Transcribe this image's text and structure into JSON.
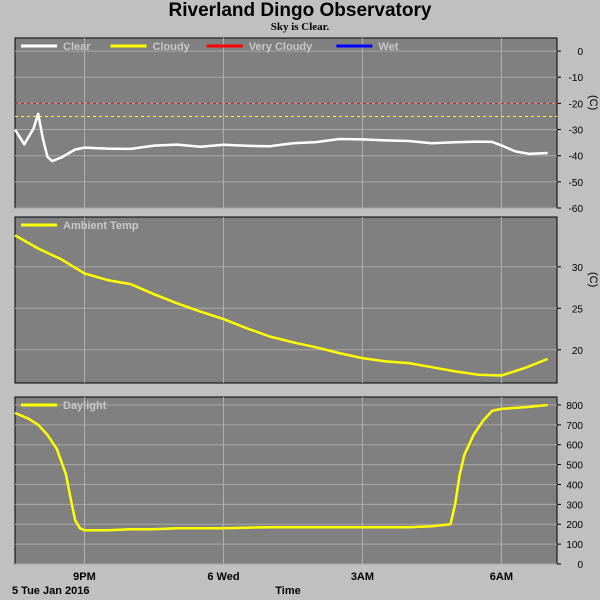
{
  "header": {
    "title": "Riverland Dingo Observatory",
    "subtitle": "Sky is Clear."
  },
  "footer": {
    "date_label": "5 Tue Jan 2016",
    "time_label": "Time"
  },
  "chart_data": [
    {
      "type": "line",
      "name": "sky-temperature",
      "legend": [
        {
          "label": "Clear",
          "color": "#ffffff"
        },
        {
          "label": "Cloudy",
          "color": "#ffff00"
        },
        {
          "label": "Very Cloudy",
          "color": "#ff0000"
        },
        {
          "label": "Wet",
          "color": "#0000ff"
        }
      ],
      "legend_placement": "top-left",
      "ylabel": "(C)",
      "ylim": [
        -60,
        5
      ],
      "yticks": [
        0,
        -10,
        -20,
        -30,
        -40,
        -50,
        -60
      ],
      "thresholds": [
        {
          "value": -20,
          "color": "#ff0000"
        },
        {
          "value": -25,
          "color": "#ffff00"
        }
      ],
      "x_hours": [
        19.5,
        19.7,
        19.9,
        20.0,
        20.1,
        20.2,
        20.3,
        20.5,
        20.8,
        21.0,
        21.5,
        22.0,
        22.5,
        23.0,
        23.5,
        24.0,
        24.5,
        25.0,
        25.5,
        26.0,
        26.5,
        27.0,
        27.5,
        28.0,
        28.5,
        29.0,
        29.5,
        29.8,
        30.0,
        30.3,
        30.6,
        31.0
      ],
      "series": [
        {
          "color": "#ffffff",
          "values": [
            -30,
            -36,
            -30,
            -24,
            -33,
            -40,
            -42,
            -41,
            -38,
            -37,
            -37,
            -37,
            -36,
            -36,
            -37,
            -36,
            -36,
            -36,
            -35,
            -35,
            -34,
            -34,
            -34,
            -34,
            -35,
            -35,
            -35,
            -35,
            -36,
            -38,
            -39,
            -39
          ]
        }
      ]
    },
    {
      "type": "line",
      "name": "ambient-temp",
      "legend": [
        {
          "label": "Ambient Temp",
          "color": "#ffff00"
        }
      ],
      "legend_placement": "top-left",
      "ylabel": "(C)",
      "ylim": [
        16,
        36
      ],
      "yticks": [
        30,
        25,
        20
      ],
      "x_hours": [
        19.5,
        20.0,
        20.5,
        21.0,
        21.5,
        22.0,
        22.5,
        23.0,
        23.5,
        24.0,
        24.5,
        25.0,
        25.5,
        26.0,
        26.5,
        27.0,
        27.5,
        28.0,
        28.5,
        29.0,
        29.5,
        30.0,
        30.5,
        31.0
      ],
      "series": [
        {
          "color": "#ffff00",
          "values": [
            33.8,
            32.2,
            30.9,
            29.2,
            28.4,
            27.9,
            26.7,
            25.6,
            24.6,
            23.7,
            22.6,
            21.6,
            20.9,
            20.3,
            19.6,
            19.0,
            18.6,
            18.4,
            17.9,
            17.4,
            17.0,
            16.9,
            17.8,
            18.9
          ]
        }
      ]
    },
    {
      "type": "line",
      "name": "daylight",
      "legend": [
        {
          "label": "Daylight",
          "color": "#ffff00"
        }
      ],
      "legend_placement": "top-left",
      "ylim": [
        0,
        840
      ],
      "yticks": [
        800,
        700,
        600,
        500,
        400,
        300,
        200,
        100,
        0
      ],
      "x_hours": [
        19.5,
        19.8,
        20.0,
        20.2,
        20.4,
        20.6,
        20.7,
        20.8,
        20.9,
        21.0,
        21.5,
        22.0,
        22.5,
        23.0,
        24.0,
        25.0,
        26.0,
        27.0,
        28.0,
        28.5,
        28.9,
        29.0,
        29.1,
        29.2,
        29.3,
        29.4,
        29.6,
        29.8,
        30.0,
        30.3,
        30.6,
        31.0
      ],
      "series": [
        {
          "color": "#ffff00",
          "values": [
            760,
            730,
            700,
            650,
            580,
            450,
            330,
            220,
            180,
            170,
            170,
            175,
            175,
            180,
            180,
            185,
            185,
            185,
            185,
            190,
            200,
            300,
            450,
            550,
            600,
            650,
            720,
            770,
            780,
            785,
            790,
            800
          ]
        }
      ]
    }
  ],
  "x_axis": {
    "range_hours": [
      19.5,
      31.2
    ],
    "ticks": [
      {
        "label": "9PM",
        "hour": 21
      },
      {
        "label": "6 Wed",
        "hour": 24
      },
      {
        "label": "3AM",
        "hour": 27
      },
      {
        "label": "6AM",
        "hour": 30
      }
    ],
    "minor_gridlines_hours": [
      21,
      24,
      27,
      30
    ]
  }
}
